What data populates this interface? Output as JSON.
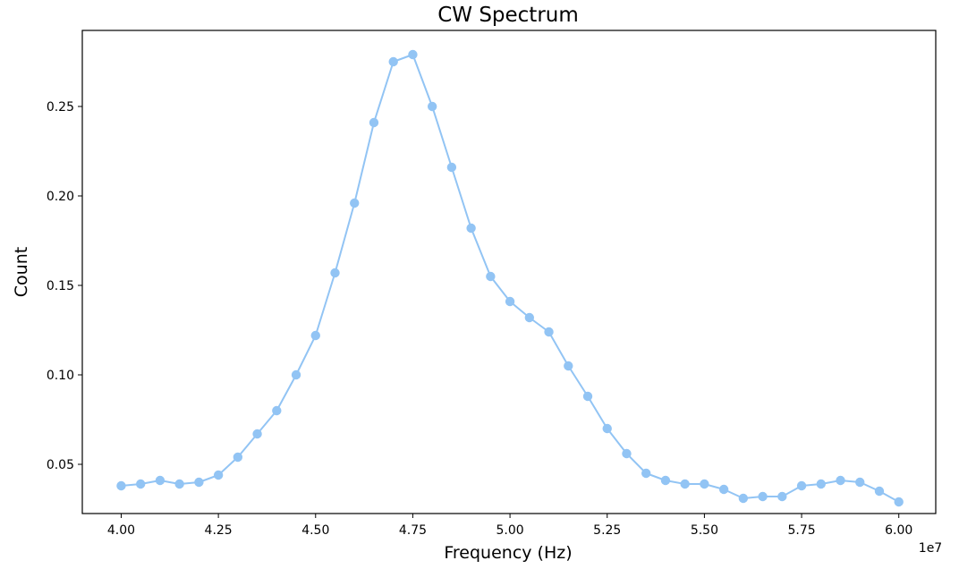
{
  "chart_data": {
    "type": "line",
    "title": "CW Spectrum",
    "xlabel": "Frequency (Hz)",
    "ylabel": "Count",
    "x_offset_label": "1e7",
    "x_scale": 10000000,
    "xlim": [
      3.9,
      6.095
    ],
    "ylim": [
      0.0225,
      0.2925
    ],
    "grid": false,
    "legend": "none",
    "marker": "circle",
    "color": "#92c4f4",
    "x_ticks": [
      {
        "value": 4.0,
        "label": "4.00"
      },
      {
        "value": 4.25,
        "label": "4.25"
      },
      {
        "value": 4.5,
        "label": "4.50"
      },
      {
        "value": 4.75,
        "label": "4.75"
      },
      {
        "value": 5.0,
        "label": "5.00"
      },
      {
        "value": 5.25,
        "label": "5.25"
      },
      {
        "value": 5.5,
        "label": "5.50"
      },
      {
        "value": 5.75,
        "label": "5.75"
      },
      {
        "value": 6.0,
        "label": "6.00"
      }
    ],
    "y_ticks": [
      {
        "value": 0.05,
        "label": "0.05"
      },
      {
        "value": 0.1,
        "label": "0.10"
      },
      {
        "value": 0.15,
        "label": "0.15"
      },
      {
        "value": 0.2,
        "label": "0.20"
      },
      {
        "value": 0.25,
        "label": "0.25"
      }
    ],
    "series": [
      {
        "x": [
          40000000,
          40500000,
          41000000,
          41500000,
          42000000,
          42500000,
          43000000,
          43500000,
          44000000,
          44500000,
          45000000,
          45500000,
          46000000,
          46500000,
          47000000,
          47500000,
          48000000,
          48500000,
          49000000,
          49500000,
          50000000,
          50500000,
          51000000,
          51500000,
          52000000,
          52500000,
          53000000,
          53500000,
          54000000,
          54500000,
          55000000,
          55500000,
          56000000,
          56500000,
          57000000,
          57500000,
          58000000,
          58500000,
          59000000,
          59500000,
          60000000
        ],
        "values": [
          0.038,
          0.039,
          0.041,
          0.039,
          0.04,
          0.044,
          0.054,
          0.067,
          0.08,
          0.1,
          0.122,
          0.157,
          0.196,
          0.241,
          0.275,
          0.279,
          0.25,
          0.216,
          0.182,
          0.155,
          0.141,
          0.132,
          0.124,
          0.105,
          0.088,
          0.07,
          0.056,
          0.045,
          0.041,
          0.039,
          0.039,
          0.036,
          0.031,
          0.032,
          0.032,
          0.038,
          0.039,
          0.041,
          0.04,
          0.035,
          0.029
        ]
      }
    ]
  }
}
